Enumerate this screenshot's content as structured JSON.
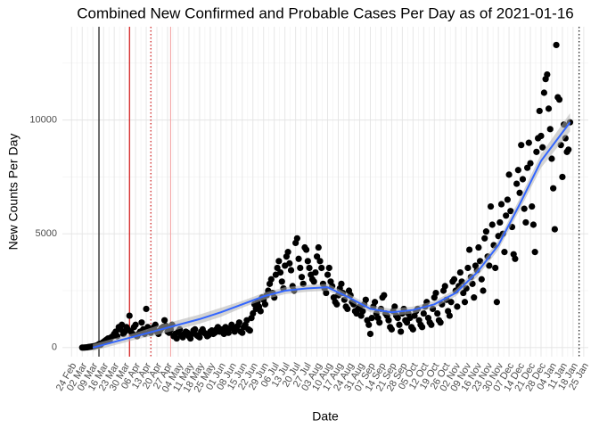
{
  "chart_data": {
    "type": "scatter",
    "title": "Combined New Confirmed and Probable Cases Per Day as of 2021-01-16",
    "x_label": "Date",
    "y_label": "New Counts Per Day",
    "color": "#000000",
    "x": [
      "2020-03-02",
      "2020-03-03",
      "2020-03-04",
      "2020-03-05",
      "2020-03-06",
      "2020-03-07",
      "2020-03-08",
      "2020-03-09",
      "2020-03-10",
      "2020-03-11",
      "2020-03-12",
      "2020-03-13",
      "2020-03-14",
      "2020-03-15",
      "2020-03-16",
      "2020-03-17",
      "2020-03-18",
      "2020-03-19",
      "2020-03-20",
      "2020-03-21",
      "2020-03-22",
      "2020-03-23",
      "2020-03-24",
      "2020-03-25",
      "2020-03-26",
      "2020-03-27",
      "2020-03-28",
      "2020-03-29",
      "2020-03-30",
      "2020-03-31",
      "2020-04-01",
      "2020-04-02",
      "2020-04-03",
      "2020-04-04",
      "2020-04-05",
      "2020-04-06",
      "2020-04-07",
      "2020-04-08",
      "2020-04-09",
      "2020-04-10",
      "2020-04-11",
      "2020-04-12",
      "2020-04-13",
      "2020-04-14",
      "2020-04-15",
      "2020-04-16",
      "2020-04-17",
      "2020-04-18",
      "2020-04-19",
      "2020-04-20",
      "2020-04-21",
      "2020-04-22",
      "2020-04-23",
      "2020-04-24",
      "2020-04-25",
      "2020-04-26",
      "2020-04-27",
      "2020-04-28",
      "2020-04-29",
      "2020-04-30",
      "2020-05-01",
      "2020-05-02",
      "2020-05-03",
      "2020-05-04",
      "2020-05-05",
      "2020-05-06",
      "2020-05-07",
      "2020-05-08",
      "2020-05-09",
      "2020-05-10",
      "2020-05-11",
      "2020-05-12",
      "2020-05-13",
      "2020-05-14",
      "2020-05-15",
      "2020-05-16",
      "2020-05-17",
      "2020-05-18",
      "2020-05-19",
      "2020-05-20",
      "2020-05-21",
      "2020-05-22",
      "2020-05-23",
      "2020-05-24",
      "2020-05-25",
      "2020-05-26",
      "2020-05-27",
      "2020-05-28",
      "2020-05-29",
      "2020-05-30",
      "2020-05-31",
      "2020-06-01",
      "2020-06-02",
      "2020-06-03",
      "2020-06-04",
      "2020-06-05",
      "2020-06-06",
      "2020-06-07",
      "2020-06-08",
      "2020-06-09",
      "2020-06-10",
      "2020-06-11",
      "2020-06-12",
      "2020-06-13",
      "2020-06-14",
      "2020-06-15",
      "2020-06-16",
      "2020-06-17",
      "2020-06-18",
      "2020-06-19",
      "2020-06-20",
      "2020-06-21",
      "2020-06-22",
      "2020-06-23",
      "2020-06-24",
      "2020-06-25",
      "2020-06-26",
      "2020-06-27",
      "2020-06-28",
      "2020-06-29",
      "2020-06-30",
      "2020-07-01",
      "2020-07-02",
      "2020-07-03",
      "2020-07-04",
      "2020-07-05",
      "2020-07-06",
      "2020-07-07",
      "2020-07-08",
      "2020-07-09",
      "2020-07-10",
      "2020-07-11",
      "2020-07-12",
      "2020-07-13",
      "2020-07-14",
      "2020-07-15",
      "2020-07-16",
      "2020-07-17",
      "2020-07-18",
      "2020-07-19",
      "2020-07-20",
      "2020-07-21",
      "2020-07-22",
      "2020-07-23",
      "2020-07-24",
      "2020-07-25",
      "2020-07-26",
      "2020-07-27",
      "2020-07-28",
      "2020-07-29",
      "2020-07-30",
      "2020-07-31",
      "2020-08-01",
      "2020-08-02",
      "2020-08-03",
      "2020-08-04",
      "2020-08-05",
      "2020-08-06",
      "2020-08-07",
      "2020-08-08",
      "2020-08-09",
      "2020-08-10",
      "2020-08-11",
      "2020-08-12",
      "2020-08-13",
      "2020-08-14",
      "2020-08-15",
      "2020-08-16",
      "2020-08-17",
      "2020-08-18",
      "2020-08-19",
      "2020-08-20",
      "2020-08-21",
      "2020-08-22",
      "2020-08-23",
      "2020-08-24",
      "2020-08-25",
      "2020-08-26",
      "2020-08-27",
      "2020-08-28",
      "2020-08-29",
      "2020-08-30",
      "2020-08-31",
      "2020-09-01",
      "2020-09-02",
      "2020-09-03",
      "2020-09-04",
      "2020-09-05",
      "2020-09-06",
      "2020-09-07",
      "2020-09-08",
      "2020-09-09",
      "2020-09-10",
      "2020-09-11",
      "2020-09-12",
      "2020-09-13",
      "2020-09-14",
      "2020-09-15",
      "2020-09-16",
      "2020-09-17",
      "2020-09-18",
      "2020-09-19",
      "2020-09-20",
      "2020-09-21",
      "2020-09-22",
      "2020-09-23",
      "2020-09-24",
      "2020-09-25",
      "2020-09-26",
      "2020-09-27",
      "2020-09-28",
      "2020-09-29",
      "2020-09-30",
      "2020-10-01",
      "2020-10-02",
      "2020-10-03",
      "2020-10-04",
      "2020-10-05",
      "2020-10-06",
      "2020-10-07",
      "2020-10-08",
      "2020-10-09",
      "2020-10-10",
      "2020-10-11",
      "2020-10-12",
      "2020-10-13",
      "2020-10-14",
      "2020-10-15",
      "2020-10-16",
      "2020-10-17",
      "2020-10-18",
      "2020-10-19",
      "2020-10-20",
      "2020-10-21",
      "2020-10-22",
      "2020-10-23",
      "2020-10-24",
      "2020-10-25",
      "2020-10-26",
      "2020-10-27",
      "2020-10-28",
      "2020-10-29",
      "2020-10-30",
      "2020-10-31",
      "2020-11-01",
      "2020-11-02",
      "2020-11-03",
      "2020-11-04",
      "2020-11-05",
      "2020-11-06",
      "2020-11-07",
      "2020-11-08",
      "2020-11-09",
      "2020-11-10",
      "2020-11-11",
      "2020-11-12",
      "2020-11-13",
      "2020-11-14",
      "2020-11-15",
      "2020-11-16",
      "2020-11-17",
      "2020-11-18",
      "2020-11-19",
      "2020-11-20",
      "2020-11-21",
      "2020-11-22",
      "2020-11-23",
      "2020-11-24",
      "2020-11-25",
      "2020-11-26",
      "2020-11-27",
      "2020-11-28",
      "2020-11-29",
      "2020-11-30",
      "2020-12-01",
      "2020-12-02",
      "2020-12-03",
      "2020-12-04",
      "2020-12-05",
      "2020-12-06",
      "2020-12-07",
      "2020-12-08",
      "2020-12-09",
      "2020-12-10",
      "2020-12-11",
      "2020-12-12",
      "2020-12-13",
      "2020-12-14",
      "2020-12-15",
      "2020-12-16",
      "2020-12-17",
      "2020-12-18",
      "2020-12-19",
      "2020-12-20",
      "2020-12-21",
      "2020-12-22",
      "2020-12-23",
      "2020-12-24",
      "2020-12-25",
      "2020-12-26",
      "2020-12-27",
      "2020-12-28",
      "2020-12-29",
      "2020-12-30",
      "2020-12-31",
      "2021-01-01",
      "2021-01-02",
      "2021-01-03",
      "2021-01-04",
      "2021-01-05",
      "2021-01-06",
      "2021-01-07",
      "2021-01-08",
      "2021-01-09",
      "2021-01-10",
      "2021-01-11",
      "2021-01-12",
      "2021-01-13",
      "2021-01-14",
      "2021-01-15",
      "2021-01-16"
    ],
    "values": [
      0,
      0,
      5,
      10,
      20,
      30,
      40,
      50,
      60,
      80,
      100,
      150,
      120,
      200,
      250,
      300,
      350,
      400,
      300,
      450,
      500,
      600,
      700,
      500,
      900,
      800,
      1000,
      600,
      700,
      900,
      800,
      1400,
      700,
      600,
      900,
      1000,
      500,
      600,
      700,
      1100,
      800,
      600,
      1700,
      900,
      700,
      650,
      800,
      900,
      1000,
      700,
      600,
      750,
      850,
      900,
      1200,
      950,
      700,
      650,
      800,
      1000,
      500,
      600,
      400,
      700,
      800,
      550,
      450,
      600,
      700,
      650,
      500,
      400,
      600,
      750,
      800,
      550,
      500,
      450,
      700,
      800,
      650,
      600,
      500,
      550,
      700,
      750,
      600,
      650,
      800,
      900,
      700,
      700,
      800,
      600,
      900,
      750,
      650,
      850,
      1000,
      900,
      700,
      800,
      950,
      1100,
      700,
      650,
      900,
      1000,
      1200,
      800,
      750,
      1300,
      1500,
      1900,
      1700,
      2000,
      1800,
      1600,
      2200,
      2100,
      1900,
      2300,
      2500,
      2800,
      3000,
      2400,
      2200,
      3200,
      3500,
      3800,
      3300,
      2900,
      2600,
      3600,
      4000,
      4200,
      3700,
      3400,
      2700,
      2500,
      4600,
      4800,
      3900,
      3500,
      3100,
      2800,
      4400,
      4300,
      3800,
      3500,
      3200,
      3000,
      2900,
      3300,
      4000,
      4400,
      3800,
      3500,
      2800,
      2600,
      2400,
      3200,
      3500,
      2900,
      2700,
      2200,
      2000,
      1900,
      2300,
      2600,
      2800,
      2400,
      2100,
      1800,
      1700,
      2500,
      2300,
      2000,
      1900,
      1600,
      1500,
      1700,
      1800,
      1400,
      1600,
      1900,
      2100,
      1200,
      1000,
      600,
      1300,
      1800,
      2000,
      1500,
      1300,
      1100,
      1700,
      2200,
      2300,
      1500,
      1400,
      1200,
      900,
      800,
      1600,
      1800,
      1400,
      1300,
      1000,
      700,
      1500,
      1700,
      1200,
      1100,
      1500,
      1300,
      900,
      800,
      1400,
      1600,
      1700,
      1200,
      1000,
      900,
      1500,
      1800,
      2000,
      1300,
      1100,
      1000,
      1700,
      2200,
      2400,
      1500,
      1200,
      1100,
      1900,
      2500,
      2700,
      2100,
      1600,
      1400,
      2000,
      2900,
      3000,
      2500,
      1800,
      2700,
      3300,
      2900,
      2400,
      2000,
      2600,
      3500,
      4300,
      3100,
      2800,
      2200,
      3600,
      3400,
      4400,
      3800,
      3000,
      2500,
      4800,
      5100,
      4000,
      3600,
      6200,
      5400,
      4500,
      3500,
      2000,
      4900,
      5500,
      6300,
      5000,
      4200,
      5800,
      6500,
      7600,
      6000,
      5300,
      4100,
      3900,
      7200,
      7800,
      6800,
      8900,
      7400,
      6100,
      5500,
      7900,
      9000,
      8100,
      6200,
      5400,
      4200,
      8600,
      9200,
      10400,
      9300,
      8800,
      11200,
      11800,
      12000,
      10500,
      9600,
      8300,
      7000,
      5200,
      13300,
      11000,
      10900,
      8900,
      7500,
      9800,
      9200,
      8600,
      8700,
      9900
    ],
    "trend": {
      "color": "#3366ff",
      "ribbon_color": "#b0b0b0",
      "x": [
        "2020-03-09",
        "2020-03-23",
        "2020-04-06",
        "2020-04-20",
        "2020-05-04",
        "2020-05-18",
        "2020-06-01",
        "2020-06-15",
        "2020-06-29",
        "2020-07-13",
        "2020-07-27",
        "2020-08-10",
        "2020-08-24",
        "2020-09-07",
        "2020-09-21",
        "2020-10-05",
        "2020-10-19",
        "2020-11-02",
        "2020-11-16",
        "2020-11-30",
        "2020-12-14",
        "2020-12-28",
        "2021-01-16"
      ],
      "values": [
        0,
        250,
        500,
        750,
        1000,
        1250,
        1550,
        1900,
        2250,
        2500,
        2600,
        2650,
        2200,
        1700,
        1550,
        1650,
        1900,
        2400,
        3300,
        4500,
        6300,
        8200,
        9900
      ],
      "lower": [
        -150,
        100,
        350,
        550,
        800,
        1050,
        1350,
        1750,
        2100,
        2350,
        2450,
        2500,
        2050,
        1550,
        1400,
        1500,
        1750,
        2250,
        3100,
        4300,
        6050,
        7900,
        9500
      ],
      "upper": [
        150,
        400,
        650,
        950,
        1200,
        1450,
        1750,
        2050,
        2400,
        2650,
        2750,
        2800,
        2350,
        1850,
        1700,
        1800,
        2050,
        2550,
        3500,
        4700,
        6550,
        8500,
        10300
      ]
    },
    "vlines": [
      {
        "x": "2020-03-13",
        "color": "#000000",
        "dash": false
      },
      {
        "x": "2020-04-02",
        "color": "#cc0000",
        "dash": false
      },
      {
        "x": "2020-04-16",
        "color": "#cc0000",
        "dash": true
      },
      {
        "x": "2020-04-29",
        "color": "#f4a6a6",
        "dash": false
      },
      {
        "x": "2021-01-22",
        "color": "#000000",
        "dash": true
      }
    ],
    "xlim": [
      "2020-02-18",
      "2021-01-28"
    ],
    "ylim": [
      -400,
      14100
    ],
    "yticks": [
      0,
      5000,
      10000
    ],
    "xticks": [
      {
        "value": "2020-02-24",
        "label": "24 Feb"
      },
      {
        "value": "2020-03-02",
        "label": "02 Mar"
      },
      {
        "value": "2020-03-09",
        "label": "09 Mar"
      },
      {
        "value": "2020-03-16",
        "label": "16 Mar"
      },
      {
        "value": "2020-03-23",
        "label": "23 Mar"
      },
      {
        "value": "2020-03-30",
        "label": "30 Mar"
      },
      {
        "value": "2020-04-06",
        "label": "06 Apr"
      },
      {
        "value": "2020-04-13",
        "label": "13 Apr"
      },
      {
        "value": "2020-04-20",
        "label": "20 Apr"
      },
      {
        "value": "2020-04-27",
        "label": "27 Apr"
      },
      {
        "value": "2020-05-04",
        "label": "04 May"
      },
      {
        "value": "2020-05-11",
        "label": "11 May"
      },
      {
        "value": "2020-05-18",
        "label": "18 May"
      },
      {
        "value": "2020-05-25",
        "label": "25 May"
      },
      {
        "value": "2020-06-01",
        "label": "01 Jun"
      },
      {
        "value": "2020-06-08",
        "label": "08 Jun"
      },
      {
        "value": "2020-06-15",
        "label": "15 Jun"
      },
      {
        "value": "2020-06-22",
        "label": "22 Jun"
      },
      {
        "value": "2020-06-29",
        "label": "29 Jun"
      },
      {
        "value": "2020-07-06",
        "label": "06 Jul"
      },
      {
        "value": "2020-07-13",
        "label": "13 Jul"
      },
      {
        "value": "2020-07-20",
        "label": "20 Jul"
      },
      {
        "value": "2020-07-27",
        "label": "27 Jul"
      },
      {
        "value": "2020-08-03",
        "label": "03 Aug"
      },
      {
        "value": "2020-08-10",
        "label": "10 Aug"
      },
      {
        "value": "2020-08-17",
        "label": "17 Aug"
      },
      {
        "value": "2020-08-24",
        "label": "24 Aug"
      },
      {
        "value": "2020-08-31",
        "label": "31 Aug"
      },
      {
        "value": "2020-09-07",
        "label": "07 Sep"
      },
      {
        "value": "2020-09-14",
        "label": "14 Sep"
      },
      {
        "value": "2020-09-21",
        "label": "21 Sep"
      },
      {
        "value": "2020-09-28",
        "label": "28 Sep"
      },
      {
        "value": "2020-10-05",
        "label": "05 Oct"
      },
      {
        "value": "2020-10-12",
        "label": "12 Oct"
      },
      {
        "value": "2020-10-19",
        "label": "19 Oct"
      },
      {
        "value": "2020-10-26",
        "label": "26 Oct"
      },
      {
        "value": "2020-11-02",
        "label": "02 Nov"
      },
      {
        "value": "2020-11-09",
        "label": "09 Nov"
      },
      {
        "value": "2020-11-16",
        "label": "16 Nov"
      },
      {
        "value": "2020-11-23",
        "label": "23 Nov"
      },
      {
        "value": "2020-11-30",
        "label": "30 Nov"
      },
      {
        "value": "2020-12-07",
        "label": "07 Dec"
      },
      {
        "value": "2020-12-14",
        "label": "14 Dec"
      },
      {
        "value": "2020-12-21",
        "label": "21 Dec"
      },
      {
        "value": "2020-12-28",
        "label": "28 Dec"
      },
      {
        "value": "2021-01-04",
        "label": "04 Jan"
      },
      {
        "value": "2021-01-11",
        "label": "11 Jan"
      },
      {
        "value": "2021-01-18",
        "label": "18 Jan"
      },
      {
        "value": "2021-01-25",
        "label": "25 Jan"
      }
    ],
    "grid": true
  }
}
